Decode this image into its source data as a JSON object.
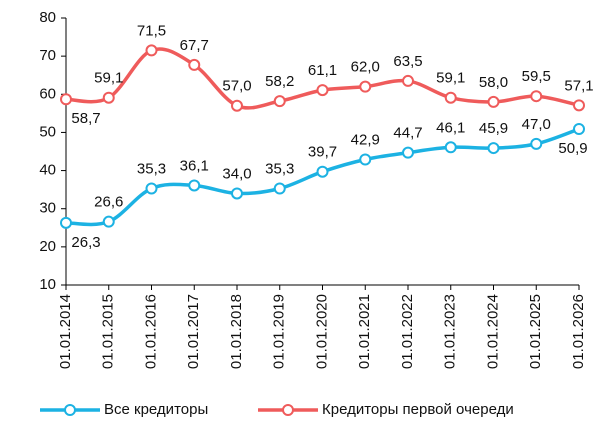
{
  "chart_data": {
    "type": "line",
    "categories": [
      "01.01.2014",
      "01.01.2015",
      "01.01.2016",
      "01.01.2017",
      "01.01.2018",
      "01.01.2019",
      "01.01.2020",
      "01.01.2021",
      "01.01.2022",
      "01.01.2023",
      "01.01.2024",
      "01.01.2025",
      "01.01.2026"
    ],
    "series": [
      {
        "name": "Все кредиторы",
        "color": "#1cb2e3",
        "values": [
          26.3,
          26.6,
          35.3,
          36.1,
          34.0,
          35.3,
          39.7,
          42.9,
          44.7,
          46.1,
          45.9,
          47.0,
          50.9
        ],
        "value_labels": [
          "26,3",
          "26,6",
          "35,3",
          "36,1",
          "34,0",
          "35,3",
          "39,7",
          "42,9",
          "44,7",
          "46,1",
          "45,9",
          "47,0",
          "50,9"
        ]
      },
      {
        "name": "Кредиторы первой очереди",
        "color": "#ef5b5b",
        "values": [
          58.7,
          59.1,
          71.5,
          67.7,
          57.0,
          58.2,
          61.1,
          62.0,
          63.5,
          59.1,
          58.0,
          59.5,
          57.1
        ],
        "value_labels": [
          "58,7",
          "59,1",
          "71,5",
          "67,7",
          "57,0",
          "58,2",
          "61,1",
          "62,0",
          "63,5",
          "59,1",
          "58,0",
          "59,5",
          "57,1"
        ]
      }
    ],
    "ylim": [
      10,
      80
    ],
    "yticks": [
      10,
      20,
      30,
      40,
      50,
      60,
      70,
      80
    ],
    "grid": false,
    "legend": "bottom"
  }
}
